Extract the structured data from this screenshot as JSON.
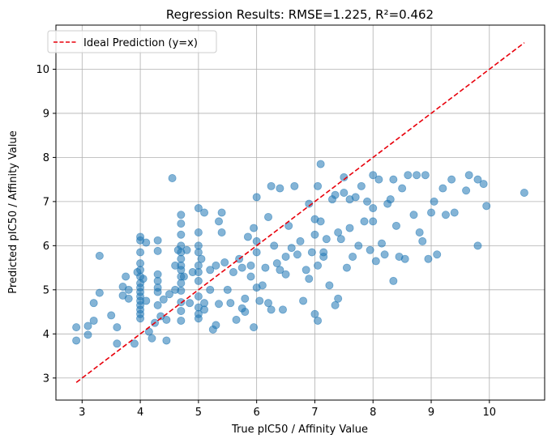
{
  "chart_data": {
    "type": "scatter",
    "title": "Regression Results: RMSE=1.225, R²=0.462",
    "xlabel": "True pIC50 / Affinity Value",
    "ylabel": "Predicted pIC50 / Affinity Value",
    "xlim": [
      2.55,
      10.95
    ],
    "ylim": [
      2.5,
      11.0
    ],
    "xticks": [
      3,
      4,
      5,
      6,
      7,
      8,
      9,
      10
    ],
    "yticks": [
      3,
      4,
      5,
      6,
      7,
      8,
      9,
      10
    ],
    "grid": true,
    "legend_position": "top-left",
    "legend": [
      {
        "label": "Ideal Prediction (y=x)",
        "style": "dashed-line",
        "color": "#e8000b"
      }
    ],
    "reference_line": {
      "x": [
        2.9,
        10.6
      ],
      "y": [
        2.9,
        10.6
      ],
      "color": "#e8000b"
    },
    "series": [
      {
        "color": "#1f77b4",
        "points": [
          [
            2.9,
            4.15
          ],
          [
            2.9,
            3.85
          ],
          [
            3.1,
            3.98
          ],
          [
            3.1,
            4.18
          ],
          [
            3.2,
            4.3
          ],
          [
            3.2,
            4.7
          ],
          [
            3.3,
            5.77
          ],
          [
            3.3,
            4.93
          ],
          [
            3.5,
            4.42
          ],
          [
            3.6,
            4.15
          ],
          [
            3.6,
            3.78
          ],
          [
            3.7,
            5.07
          ],
          [
            3.7,
            4.87
          ],
          [
            3.75,
            5.3
          ],
          [
            3.8,
            4.8
          ],
          [
            3.8,
            5.0
          ],
          [
            3.9,
            3.78
          ],
          [
            3.95,
            5.4
          ],
          [
            4.0,
            6.2
          ],
          [
            4.0,
            6.12
          ],
          [
            4.0,
            5.85
          ],
          [
            4.0,
            5.6
          ],
          [
            4.0,
            5.45
          ],
          [
            4.0,
            5.3
          ],
          [
            4.0,
            5.15
          ],
          [
            4.0,
            5.05
          ],
          [
            4.0,
            4.95
          ],
          [
            4.0,
            4.85
          ],
          [
            4.0,
            4.75
          ],
          [
            4.0,
            4.65
          ],
          [
            4.0,
            4.55
          ],
          [
            4.0,
            4.45
          ],
          [
            4.0,
            4.35
          ],
          [
            4.05,
            5.25
          ],
          [
            4.1,
            4.75
          ],
          [
            4.1,
            6.07
          ],
          [
            4.15,
            4.05
          ],
          [
            4.2,
            3.9
          ],
          [
            4.25,
            4.25
          ],
          [
            4.3,
            6.12
          ],
          [
            4.3,
            5.88
          ],
          [
            4.3,
            5.35
          ],
          [
            4.3,
            5.2
          ],
          [
            4.3,
            5.05
          ],
          [
            4.3,
            4.95
          ],
          [
            4.3,
            4.65
          ],
          [
            4.35,
            4.4
          ],
          [
            4.4,
            4.78
          ],
          [
            4.45,
            4.32
          ],
          [
            4.45,
            3.85
          ],
          [
            4.5,
            4.9
          ],
          [
            4.55,
            7.53
          ],
          [
            4.6,
            5.55
          ],
          [
            4.6,
            5.0
          ],
          [
            4.65,
            5.9
          ],
          [
            4.7,
            6.7
          ],
          [
            4.7,
            6.5
          ],
          [
            4.7,
            6.25
          ],
          [
            4.7,
            6.0
          ],
          [
            4.7,
            5.85
          ],
          [
            4.7,
            5.7
          ],
          [
            4.7,
            5.55
          ],
          [
            4.7,
            5.45
          ],
          [
            4.7,
            5.3
          ],
          [
            4.7,
            5.15
          ],
          [
            4.7,
            4.98
          ],
          [
            4.7,
            4.72
          ],
          [
            4.7,
            4.52
          ],
          [
            4.7,
            4.3
          ],
          [
            4.75,
            5.3
          ],
          [
            4.8,
            5.9
          ],
          [
            4.85,
            4.7
          ],
          [
            4.9,
            5.4
          ],
          [
            5.0,
            6.85
          ],
          [
            5.0,
            6.3
          ],
          [
            5.0,
            6.0
          ],
          [
            5.0,
            5.85
          ],
          [
            5.0,
            5.55
          ],
          [
            5.0,
            5.4
          ],
          [
            5.0,
            5.2
          ],
          [
            5.0,
            4.85
          ],
          [
            5.0,
            4.6
          ],
          [
            5.0,
            4.45
          ],
          [
            5.0,
            4.35
          ],
          [
            5.05,
            5.7
          ],
          [
            5.1,
            4.7
          ],
          [
            5.1,
            4.55
          ],
          [
            5.1,
            6.75
          ],
          [
            5.2,
            5.0
          ],
          [
            5.2,
            5.45
          ],
          [
            5.25,
            4.1
          ],
          [
            5.3,
            4.2
          ],
          [
            5.3,
            5.55
          ],
          [
            5.35,
            4.68
          ],
          [
            5.35,
            6.55
          ],
          [
            5.4,
            6.75
          ],
          [
            5.4,
            6.3
          ],
          [
            5.45,
            5.62
          ],
          [
            5.5,
            5.0
          ],
          [
            5.55,
            4.7
          ],
          [
            5.6,
            5.4
          ],
          [
            5.65,
            4.32
          ],
          [
            5.7,
            5.7
          ],
          [
            5.75,
            5.5
          ],
          [
            5.75,
            4.58
          ],
          [
            5.8,
            4.5
          ],
          [
            5.8,
            4.8
          ],
          [
            5.85,
            6.2
          ],
          [
            5.9,
            5.3
          ],
          [
            5.9,
            5.55
          ],
          [
            5.95,
            4.15
          ],
          [
            5.95,
            6.4
          ],
          [
            6.0,
            6.1
          ],
          [
            6.0,
            5.85
          ],
          [
            6.0,
            5.05
          ],
          [
            6.0,
            7.1
          ],
          [
            6.05,
            4.75
          ],
          [
            6.1,
            5.1
          ],
          [
            6.15,
            5.5
          ],
          [
            6.2,
            6.65
          ],
          [
            6.2,
            4.7
          ],
          [
            6.25,
            4.55
          ],
          [
            6.25,
            7.35
          ],
          [
            6.3,
            6.0
          ],
          [
            6.35,
            5.6
          ],
          [
            6.4,
            5.45
          ],
          [
            6.4,
            7.3
          ],
          [
            6.45,
            4.55
          ],
          [
            6.5,
            5.75
          ],
          [
            6.5,
            5.35
          ],
          [
            6.55,
            6.45
          ],
          [
            6.6,
            5.95
          ],
          [
            6.65,
            7.35
          ],
          [
            6.7,
            5.8
          ],
          [
            6.75,
            6.1
          ],
          [
            6.8,
            4.75
          ],
          [
            6.85,
            5.45
          ],
          [
            6.9,
            5.25
          ],
          [
            6.9,
            6.95
          ],
          [
            6.95,
            5.85
          ],
          [
            7.0,
            6.6
          ],
          [
            7.0,
            6.25
          ],
          [
            7.0,
            4.45
          ],
          [
            7.05,
            7.35
          ],
          [
            7.05,
            5.55
          ],
          [
            7.05,
            4.3
          ],
          [
            7.1,
            7.85
          ],
          [
            7.1,
            6.55
          ],
          [
            7.15,
            5.85
          ],
          [
            7.15,
            5.75
          ],
          [
            7.2,
            6.15
          ],
          [
            7.25,
            5.1
          ],
          [
            7.3,
            7.05
          ],
          [
            7.35,
            7.15
          ],
          [
            7.35,
            4.65
          ],
          [
            7.4,
            6.3
          ],
          [
            7.4,
            4.8
          ],
          [
            7.45,
            6.15
          ],
          [
            7.5,
            7.55
          ],
          [
            7.5,
            7.2
          ],
          [
            7.55,
            5.5
          ],
          [
            7.6,
            7.05
          ],
          [
            7.6,
            6.4
          ],
          [
            7.65,
            5.75
          ],
          [
            7.7,
            7.1
          ],
          [
            7.75,
            6.0
          ],
          [
            7.8,
            7.35
          ],
          [
            7.85,
            6.55
          ],
          [
            7.9,
            7.0
          ],
          [
            7.95,
            5.9
          ],
          [
            8.0,
            7.6
          ],
          [
            8.0,
            6.85
          ],
          [
            8.0,
            6.55
          ],
          [
            8.05,
            5.65
          ],
          [
            8.1,
            7.5
          ],
          [
            8.15,
            6.05
          ],
          [
            8.2,
            5.8
          ],
          [
            8.25,
            6.95
          ],
          [
            8.3,
            7.05
          ],
          [
            8.35,
            7.5
          ],
          [
            8.35,
            5.2
          ],
          [
            8.4,
            6.45
          ],
          [
            8.45,
            5.75
          ],
          [
            8.5,
            7.3
          ],
          [
            8.55,
            5.7
          ],
          [
            8.6,
            7.6
          ],
          [
            8.7,
            6.7
          ],
          [
            8.75,
            7.6
          ],
          [
            8.8,
            6.3
          ],
          [
            8.85,
            6.1
          ],
          [
            8.9,
            7.6
          ],
          [
            8.95,
            5.7
          ],
          [
            9.0,
            6.75
          ],
          [
            9.05,
            7.0
          ],
          [
            9.1,
            5.8
          ],
          [
            9.2,
            7.3
          ],
          [
            9.25,
            6.7
          ],
          [
            9.35,
            7.5
          ],
          [
            9.4,
            6.75
          ],
          [
            9.6,
            7.25
          ],
          [
            9.65,
            7.6
          ],
          [
            9.8,
            6.0
          ],
          [
            9.8,
            7.5
          ],
          [
            9.9,
            7.4
          ],
          [
            9.95,
            6.9
          ],
          [
            10.6,
            7.2
          ]
        ]
      }
    ]
  }
}
